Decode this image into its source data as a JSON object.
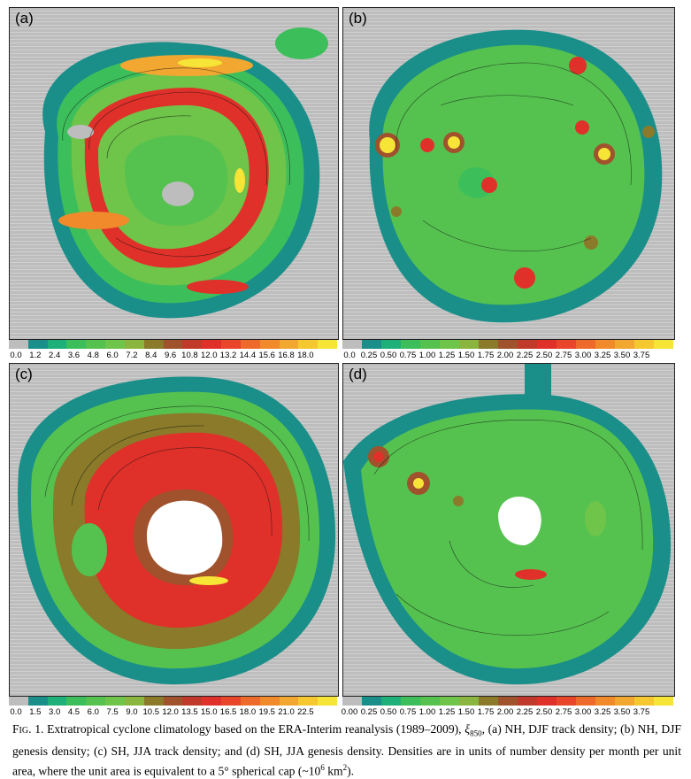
{
  "panels": [
    {
      "id": "a",
      "label": "(a)"
    },
    {
      "id": "b",
      "label": "(b)"
    },
    {
      "id": "c",
      "label": "(c)"
    },
    {
      "id": "d",
      "label": "(d)"
    }
  ],
  "colorbars": {
    "track": {
      "colors": [
        "#bdbdbd",
        "#1a8f8a",
        "#1fb07a",
        "#3cbf5a",
        "#55c24f",
        "#6fc44a",
        "#8ab63f",
        "#8a7a2a",
        "#a0522d",
        "#c0392b",
        "#e0302a",
        "#e8452a",
        "#ee6a2a",
        "#f08a2a",
        "#f2a830",
        "#f5c830",
        "#f6e436"
      ]
    },
    "genesis": {
      "colors": [
        "#bdbdbd",
        "#1a8f8a",
        "#1fb07a",
        "#3cbf5a",
        "#55c24f",
        "#6fc44a",
        "#8ab63f",
        "#8a7a2a",
        "#a0522d",
        "#c0392b",
        "#e0302a",
        "#e8452a",
        "#ee6a2a",
        "#f08a2a",
        "#f2a830",
        "#f5c830",
        "#f6e436"
      ]
    }
  },
  "tick_labels": {
    "a": [
      "0.0",
      "1.2",
      "2.4",
      "3.6",
      "4.8",
      "6.0",
      "7.2",
      "8.4",
      "9.6",
      "10.8",
      "12.0",
      "13.2",
      "14.4",
      "15.6",
      "16.8",
      "18.0"
    ],
    "b": [
      "0.0",
      "0.25",
      "0.50",
      "0.75",
      "1.00",
      "1.25",
      "1.50",
      "1.75",
      "2.00",
      "2.25",
      "2.50",
      "2.75",
      "3.00",
      "3.25",
      "3.50",
      "3.75"
    ],
    "c": [
      "0.0",
      "1.5",
      "3.0",
      "4.5",
      "6.0",
      "7.5",
      "9.0",
      "10.5",
      "12.0",
      "13.5",
      "15.0",
      "16.5",
      "18.0",
      "19.5",
      "21.0",
      "22.5"
    ],
    "d": [
      "0.00",
      "0.25",
      "0.50",
      "0.75",
      "1.00",
      "1.25",
      "1.50",
      "1.75",
      "2.00",
      "2.25",
      "2.50",
      "2.75",
      "3.00",
      "3.25",
      "3.50",
      "3.75"
    ]
  },
  "caption": {
    "fig": "Fig. 1.",
    "text1": " Extratropical cyclone climatology based on the ERA-Interim reanalysis (1989–2009), ",
    "xi": "ξ",
    "xisub": "850",
    "text2": ", (a) NH, DJF track density; (b) NH, DJF genesis density; (c) SH, JJA track density; and (d) SH, JJA genesis density. Densities are in units of number density per month per unit area, where the unit area is equivalent to a 5° spherical cap (~10",
    "sup": "6",
    "text3": " km",
    "sup2": "2",
    "text4": ")."
  }
}
